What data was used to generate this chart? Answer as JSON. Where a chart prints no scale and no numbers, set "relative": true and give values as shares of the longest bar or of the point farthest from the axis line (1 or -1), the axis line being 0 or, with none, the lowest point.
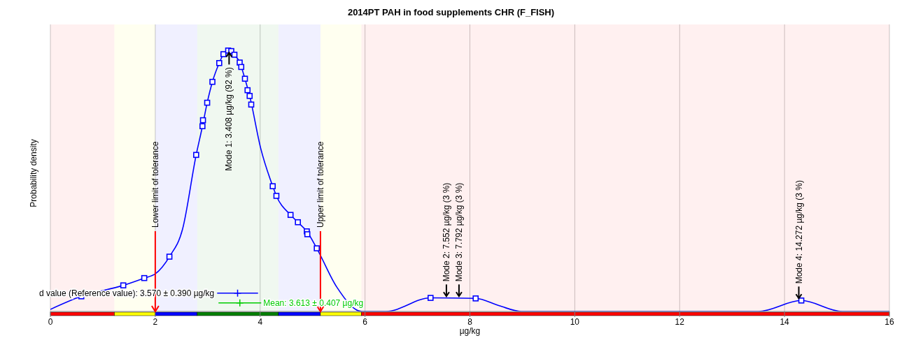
{
  "chart_data": {
    "type": "line",
    "title": "2014PT PAH in food supplements CHR (F_FISH)",
    "xlabel": "µg/kg",
    "ylabel": "Probability density",
    "relative": true,
    "xlim": [
      0,
      16
    ],
    "xticks": [
      0,
      2,
      4,
      6,
      8,
      10,
      12,
      14,
      16
    ],
    "grid": "x",
    "series": [
      {
        "type": "line",
        "color": "#0000ff",
        "marker": "none",
        "x": [
          0,
          0.59,
          1.39,
          1.79,
          2.0,
          2.27,
          2.52,
          2.78,
          2.9,
          2.99,
          3.09,
          3.22,
          3.3,
          3.39,
          3.51,
          3.61,
          3.71,
          3.8,
          4.01,
          4.24,
          4.31,
          4.58,
          4.72,
          4.89,
          5.08,
          5.46,
          5.94,
          6.4,
          7.25,
          8.11,
          8.56,
          8.98,
          13.5,
          14.32,
          15.1,
          16
        ],
        "values": [
          0.008,
          0.058,
          0.1,
          0.128,
          0.144,
          0.21,
          0.315,
          0.6,
          0.71,
          0.8,
          0.88,
          0.952,
          0.986,
          1.0,
          0.984,
          0.954,
          0.892,
          0.826,
          0.626,
          0.48,
          0.443,
          0.37,
          0.342,
          0.307,
          0.242,
          0.094,
          0,
          0,
          0.052,
          0.05,
          0.022,
          0,
          0,
          0.042,
          0,
          0
        ]
      },
      {
        "type": "scatter",
        "color": "#0000ff",
        "marker": "square",
        "x": [
          0.59,
          1.39,
          1.79,
          2.27,
          2.78,
          2.9,
          2.91,
          2.99,
          3.09,
          3.22,
          3.3,
          3.39,
          3.45,
          3.51,
          3.61,
          3.64,
          3.71,
          3.76,
          3.8,
          3.83,
          4.24,
          4.31,
          4.58,
          4.72,
          4.89,
          4.9,
          5.08,
          7.25,
          8.11,
          14.32
        ],
        "values": [
          0.058,
          0.1,
          0.128,
          0.21,
          0.6,
          0.71,
          0.733,
          0.8,
          0.88,
          0.952,
          0.986,
          1.0,
          0.998,
          0.984,
          0.954,
          0.937,
          0.892,
          0.848,
          0.826,
          0.793,
          0.48,
          0.443,
          0.37,
          0.342,
          0.307,
          0.296,
          0.242,
          0.052,
          0.05,
          0.042
        ]
      },
      {
        "type": "scatter",
        "name": "d value (Reference value): 3.570 ± 0.390 µg/kg",
        "color": "#0000ff",
        "marker": "cross",
        "x": [
          3.57
        ],
        "values": [
          0.07
        ],
        "xerrors": [
          0.39
        ]
      },
      {
        "type": "scatter",
        "name": "Mean: 3.613 ± 0.407 µg/kg",
        "color": "#00cc00",
        "marker": "cross",
        "x": [
          3.613
        ],
        "values": [
          0.033
        ],
        "xerrors": [
          0.407
        ]
      }
    ],
    "ref_lines": [
      {
        "axis": "x",
        "value": 2,
        "label": "Lower limit of tolerance",
        "color": "#ff0000"
      },
      {
        "axis": "x",
        "value": 5.15,
        "label": "Upper limit of tolerance",
        "color": "#ff0000"
      }
    ],
    "bands": [
      {
        "axis": "x",
        "from": 0,
        "to": 1.22,
        "color": "#ff0000"
      },
      {
        "axis": "x",
        "from": 1.22,
        "to": 2,
        "color": "#ffff00"
      },
      {
        "axis": "x",
        "from": 2,
        "to": 2.8,
        "color": "#0000ff"
      },
      {
        "axis": "x",
        "from": 2.8,
        "to": 4.35,
        "color": "#008000"
      },
      {
        "axis": "x",
        "from": 4.35,
        "to": 5.15,
        "color": "#0000ff"
      },
      {
        "axis": "x",
        "from": 5.15,
        "to": 5.93,
        "color": "#ffff00"
      },
      {
        "axis": "x",
        "from": 5.93,
        "to": 16,
        "color": "#ff0000"
      }
    ],
    "annotations": [
      {
        "text": "Mode 1: 3.408 µg/kg (92 %)",
        "x": 3.408,
        "y": 1.0
      },
      {
        "text": "Mode 2: 7.552 µg/kg (3 %)",
        "x": 7.552,
        "y": 0.05
      },
      {
        "text": "Mode 3: 7.792 µg/kg (3 %)",
        "x": 7.792,
        "y": 0.05
      },
      {
        "text": "Mode 4: 14.272 µg/kg (3 %)",
        "x": 14.272,
        "y": 0.042
      }
    ]
  }
}
